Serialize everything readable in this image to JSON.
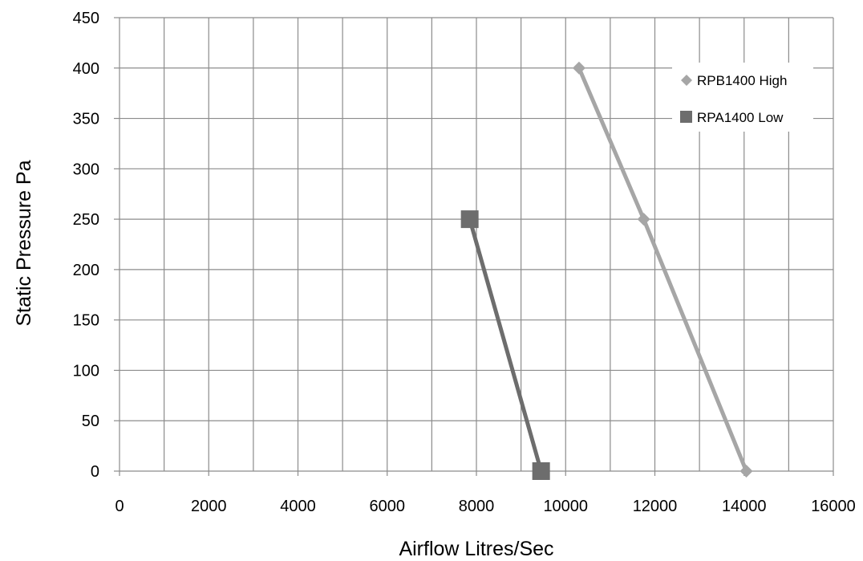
{
  "chart_data": {
    "type": "line",
    "title": "",
    "xlabel": "Airflow Litres/Sec",
    "ylabel": "Static Pressure Pa",
    "xlim": [
      0,
      16000
    ],
    "ylim": [
      0,
      450
    ],
    "xticks": [
      0,
      2000,
      4000,
      6000,
      8000,
      10000,
      12000,
      14000,
      16000
    ],
    "yticks": [
      0,
      50,
      100,
      150,
      200,
      250,
      300,
      350,
      400,
      450
    ],
    "grid": true,
    "legend_position": "top-right",
    "series": [
      {
        "name": "RPB1400 High",
        "marker": "diamond",
        "color": "#a6a6a6",
        "points": [
          {
            "x": 10300,
            "y": 400
          },
          {
            "x": 11750,
            "y": 250
          },
          {
            "x": 14050,
            "y": 0
          }
        ]
      },
      {
        "name": "RPA1400 Low",
        "marker": "square",
        "color": "#6d6d6d",
        "points": [
          {
            "x": 7850,
            "y": 250
          },
          {
            "x": 9450,
            "y": 0
          }
        ]
      }
    ]
  }
}
